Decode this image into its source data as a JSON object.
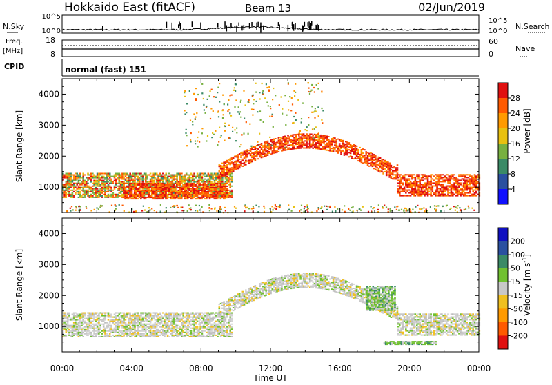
{
  "header": {
    "radar": "Hokkaido East (fitACF)",
    "beam": "Beam 13",
    "date": "02/Jun/2019"
  },
  "strip_labels": {
    "nsky": "N.Sky",
    "nsearch": "N.Search",
    "freq_line1": "Freq.",
    "freq_line2": "[MHz]",
    "nave": "Nave",
    "cpid": "CPID",
    "cpid_value": "normal (fast) 151",
    "noise_ticks": [
      "10^5",
      "10^0"
    ],
    "freq_ticks": [
      "18",
      "8"
    ],
    "nave_ticks": [
      "60",
      "0"
    ]
  },
  "chart_data": [
    {
      "type": "heatmap",
      "name": "power",
      "ylabel": "Slant Range [km]",
      "xlabel": "",
      "ylim": [
        180,
        4500
      ],
      "yticks": [
        "1000",
        "2000",
        "3000",
        "4000"
      ],
      "xticks": [
        "00:00",
        "04:00",
        "08:00",
        "12:00",
        "16:00",
        "20:00",
        "00:00"
      ],
      "colorbar": {
        "label": "Power [dB]",
        "ticks": [
          "28",
          "24",
          "20",
          "16",
          "12",
          "8",
          "4"
        ],
        "colors": [
          "#e01010",
          "#ff5a00",
          "#ff9a00",
          "#e8c010",
          "#78b040",
          "#3a8a66",
          "#2a50a0",
          "#1010ff"
        ]
      },
      "regions": [
        {
          "feature": "morning band",
          "t_start": 0.0,
          "t_end": 9.8,
          "r_min": 650,
          "r_max": 1450,
          "level": "mixed"
        },
        {
          "feature": "morning strong patch",
          "t_start": 3.5,
          "t_end": 9.5,
          "r_min": 600,
          "r_max": 1100,
          "level": "strong"
        },
        {
          "feature": "main echo arc",
          "t_start": 9.0,
          "t_end": 19.3,
          "r_min": 1400,
          "r_max": 2700,
          "level": "strong"
        },
        {
          "feature": "scattered high range",
          "t_start": 7.0,
          "t_end": 15.0,
          "r_min": 2300,
          "r_max": 4400,
          "level": "moderate"
        },
        {
          "feature": "evening band",
          "t_start": 19.3,
          "t_end": 24.0,
          "r_min": 700,
          "r_max": 1400,
          "level": "strong"
        },
        {
          "feature": "ground scatter near range",
          "t_start": 0.0,
          "t_end": 24.0,
          "r_min": 200,
          "r_max": 450,
          "level": "mixed"
        }
      ]
    },
    {
      "type": "heatmap",
      "name": "velocity",
      "ylabel": "Slant Range [km]",
      "xlabel": "Time UT",
      "ylim": [
        180,
        4500
      ],
      "yticks": [
        "1000",
        "2000",
        "3000",
        "4000"
      ],
      "xticks": [
        "00:00",
        "04:00",
        "08:00",
        "12:00",
        "16:00",
        "20:00",
        "00:00"
      ],
      "colorbar": {
        "label": "Velocity [m s^-1]",
        "ticks": [
          "200",
          "100",
          "50",
          "15",
          "-15",
          "-50",
          "-100",
          "-200"
        ],
        "colors": [
          "#1010c0",
          "#2a50a0",
          "#3a8a66",
          "#70c030",
          "#c8c8c8",
          "#f0c020",
          "#ff9a00",
          "#ff5a00",
          "#e01010"
        ]
      },
      "regions": [
        {
          "feature": "morning band",
          "t_start": 0.0,
          "t_end": 9.8,
          "r_min": 650,
          "r_max": 1450,
          "level": "near zero"
        },
        {
          "feature": "main echo arc",
          "t_start": 9.0,
          "t_end": 19.3,
          "r_min": 1400,
          "r_max": 2700,
          "level": "near zero"
        },
        {
          "feature": "arc tail positive",
          "t_start": 17.5,
          "t_end": 19.2,
          "r_min": 1500,
          "r_max": 2300,
          "level": "positive"
        },
        {
          "feature": "evening band",
          "t_start": 19.3,
          "t_end": 24.0,
          "r_min": 700,
          "r_max": 1400,
          "level": "near zero"
        },
        {
          "feature": "near range positive",
          "t_start": 18.5,
          "t_end": 21.5,
          "r_min": 400,
          "r_max": 520,
          "level": "positive"
        }
      ]
    }
  ]
}
